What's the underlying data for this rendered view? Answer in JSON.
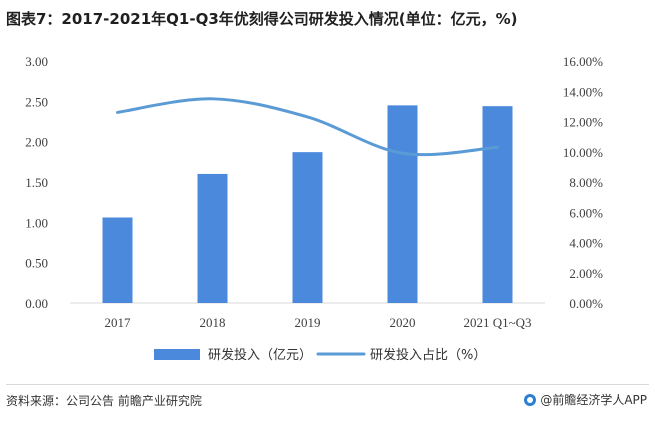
{
  "title": "图表7：2017-2021年Q1-Q3年优刻得公司研发投入情况(单位：亿元，%)",
  "source": "资料来源：公司公告 前瞻产业研究院",
  "brand": "@前瞻经济学人APP",
  "colors": {
    "bar": "#4a89dc",
    "line": "#5b9bd5",
    "grid": "#d9d9d9"
  },
  "chart_data": {
    "type": "bar",
    "categories": [
      "2017",
      "2018",
      "2019",
      "2020",
      "2021 Q1~Q3"
    ],
    "series": [
      {
        "name": "研发投入（亿元）",
        "type": "bar",
        "axis": "left",
        "values": [
          1.06,
          1.6,
          1.87,
          2.45,
          2.44
        ]
      },
      {
        "name": "研发投入占比（%）",
        "type": "line",
        "axis": "right",
        "values": [
          12.6,
          13.5,
          12.3,
          9.9,
          10.3
        ]
      }
    ],
    "y_left": {
      "ylim": [
        0,
        3
      ],
      "ticks": [
        "0.00",
        "0.50",
        "1.00",
        "1.50",
        "2.00",
        "2.50",
        "3.00"
      ]
    },
    "y_right": {
      "ylim": [
        0,
        16
      ],
      "ticks": [
        "0.00%",
        "2.00%",
        "4.00%",
        "6.00%",
        "8.00%",
        "10.00%",
        "12.00%",
        "14.00%",
        "16.00%"
      ]
    },
    "legend_position": "bottom",
    "grid": false
  }
}
